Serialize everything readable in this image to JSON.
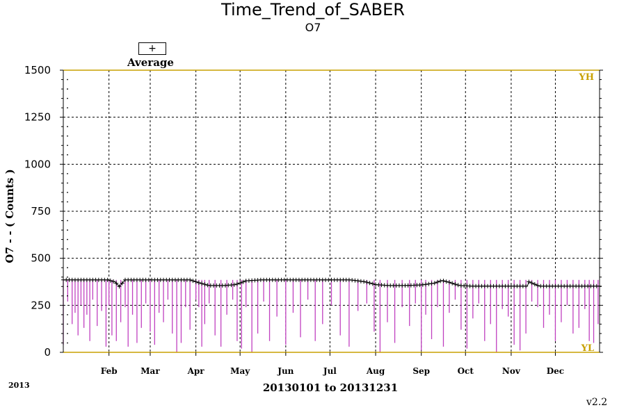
{
  "chart_data": {
    "type": "line",
    "title": "Time_Trend_of_SABER",
    "subtitle": "O7",
    "ylabel": "O7 - - ( Counts )",
    "xlabel": "20130101 to 20131231",
    "year_label": "2013",
    "version": "v2.2",
    "ylim": [
      0,
      1500
    ],
    "xlim": [
      "2013-01-01",
      "2013-12-31"
    ],
    "y_ticks": [
      0,
      250,
      500,
      750,
      1000,
      1250,
      1500
    ],
    "y_tick_labels": [
      "0",
      "250",
      "500",
      "750",
      "1000",
      "1250",
      "1500"
    ],
    "x_ticks": [
      {
        "date": "2013-02-01",
        "label": "Feb"
      },
      {
        "date": "2013-03-01",
        "label": "Mar"
      },
      {
        "date": "2013-04-01",
        "label": "Apr"
      },
      {
        "date": "2013-05-01",
        "label": "May"
      },
      {
        "date": "2013-06-01",
        "label": "Jun"
      },
      {
        "date": "2013-07-01",
        "label": "Jul"
      },
      {
        "date": "2013-08-01",
        "label": "Aug"
      },
      {
        "date": "2013-09-01",
        "label": "Sep"
      },
      {
        "date": "2013-10-01",
        "label": "Oct"
      },
      {
        "date": "2013-11-01",
        "label": "Nov"
      },
      {
        "date": "2013-12-01",
        "label": "Dec"
      }
    ],
    "grid": true,
    "reference_lines": [
      {
        "label": "YH",
        "value": 1500,
        "color": "#c8a000"
      },
      {
        "label": "YL",
        "value": 0,
        "color": "#c8a000"
      }
    ],
    "legend": {
      "symbol": "+",
      "label": "Average",
      "placement": "top-left"
    },
    "series": [
      {
        "name": "Average",
        "marker": "+",
        "color": "#000000",
        "x": [
          "2013-01-01",
          "2013-01-15",
          "2013-01-31",
          "2013-02-05",
          "2013-02-08",
          "2013-02-12",
          "2013-03-01",
          "2013-03-15",
          "2013-03-28",
          "2013-04-03",
          "2013-04-10",
          "2013-04-20",
          "2013-04-28",
          "2013-05-05",
          "2013-05-15",
          "2013-06-01",
          "2013-06-15",
          "2013-07-01",
          "2013-07-15",
          "2013-07-25",
          "2013-08-01",
          "2013-08-10",
          "2013-08-20",
          "2013-09-01",
          "2013-09-10",
          "2013-09-15",
          "2013-09-20",
          "2013-09-27",
          "2013-10-05",
          "2013-10-15",
          "2013-11-01",
          "2013-11-12",
          "2013-11-13",
          "2013-11-20",
          "2013-12-01",
          "2013-12-15",
          "2013-12-31"
        ],
        "y": [
          385,
          385,
          385,
          375,
          350,
          385,
          385,
          385,
          385,
          370,
          355,
          355,
          360,
          380,
          385,
          385,
          385,
          385,
          385,
          375,
          360,
          355,
          355,
          358,
          368,
          382,
          372,
          355,
          352,
          352,
          352,
          352,
          375,
          352,
          352,
          352,
          352
        ]
      },
      {
        "name": "",
        "type": "minimum_spikes",
        "color": "#c040c0",
        "x": [
          "2013-01-01",
          "2013-01-04",
          "2013-01-07",
          "2013-01-09",
          "2013-01-11",
          "2013-01-13",
          "2013-01-15",
          "2013-01-17",
          "2013-01-19",
          "2013-01-21",
          "2013-01-24",
          "2013-01-27",
          "2013-01-30",
          "2013-02-01",
          "2013-02-03",
          "2013-02-06",
          "2013-02-09",
          "2013-02-12",
          "2013-02-14",
          "2013-02-17",
          "2013-02-20",
          "2013-02-23",
          "2013-02-26",
          "2013-03-01",
          "2013-03-04",
          "2013-03-07",
          "2013-03-10",
          "2013-03-13",
          "2013-03-16",
          "2013-03-19",
          "2013-03-22",
          "2013-03-25",
          "2013-03-28",
          "2013-04-01",
          "2013-04-03",
          "2013-04-05",
          "2013-04-07",
          "2013-04-10",
          "2013-04-14",
          "2013-04-18",
          "2013-04-22",
          "2013-04-26",
          "2013-04-29",
          "2013-05-02",
          "2013-05-05",
          "2013-05-09",
          "2013-05-13",
          "2013-05-17",
          "2013-05-21",
          "2013-05-26",
          "2013-06-01",
          "2013-06-06",
          "2013-06-11",
          "2013-06-16",
          "2013-06-21",
          "2013-06-26",
          "2013-07-02",
          "2013-07-08",
          "2013-07-14",
          "2013-07-20",
          "2013-07-26",
          "2013-07-31",
          "2013-08-04",
          "2013-08-09",
          "2013-08-14",
          "2013-08-19",
          "2013-08-24",
          "2013-08-28",
          "2013-09-01",
          "2013-09-04",
          "2013-09-08",
          "2013-09-12",
          "2013-09-16",
          "2013-09-20",
          "2013-09-24",
          "2013-09-28",
          "2013-10-02",
          "2013-10-06",
          "2013-10-10",
          "2013-10-14",
          "2013-10-18",
          "2013-10-22",
          "2013-10-26",
          "2013-10-30",
          "2013-11-03",
          "2013-11-07",
          "2013-11-11",
          "2013-11-15",
          "2013-11-19",
          "2013-11-23",
          "2013-11-27",
          "2013-12-01",
          "2013-12-05",
          "2013-12-09",
          "2013-12-13",
          "2013-12-17",
          "2013-12-21",
          "2013-12-24",
          "2013-12-27",
          "2013-12-30"
        ],
        "y": [
          40,
          270,
          150,
          210,
          90,
          250,
          130,
          200,
          60,
          280,
          140,
          220,
          30,
          250,
          90,
          60,
          160,
          240,
          30,
          200,
          50,
          130,
          260,
          110,
          40,
          210,
          160,
          280,
          100,
          0,
          50,
          240,
          120,
          280,
          240,
          30,
          150,
          260,
          90,
          30,
          200,
          280,
          60,
          20,
          240,
          0,
          100,
          270,
          60,
          190,
          40,
          210,
          80,
          280,
          60,
          150,
          250,
          90,
          30,
          220,
          260,
          110,
          0,
          160,
          50,
          240,
          140,
          260,
          10,
          200,
          70,
          240,
          30,
          210,
          280,
          120,
          20,
          180,
          260,
          60,
          150,
          0,
          230,
          190,
          40,
          10,
          100,
          270,
          240,
          130,
          200,
          60,
          160,
          250,
          100,
          130,
          230,
          60,
          50,
          150
        ]
      }
    ]
  }
}
